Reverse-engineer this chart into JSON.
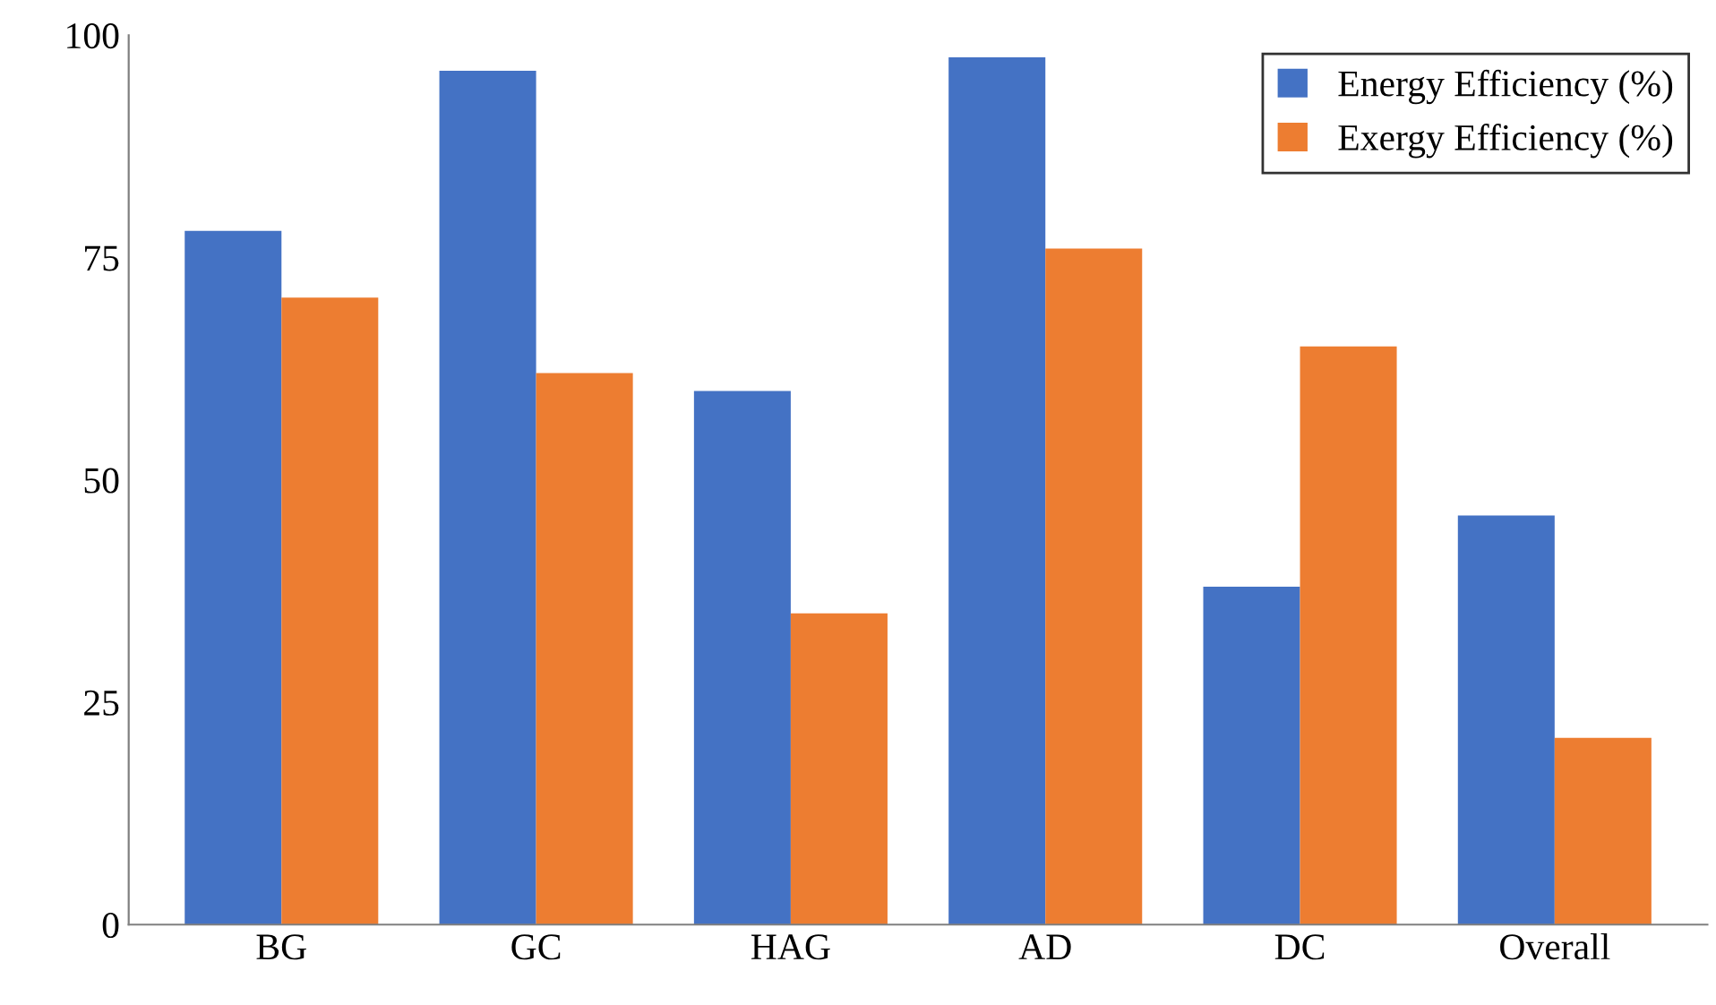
{
  "chart_data": {
    "type": "bar",
    "categories": [
      "BG",
      "GC",
      "HAG",
      "AD",
      "DC",
      "Overall"
    ],
    "series": [
      {
        "name": "Energy Efficiency (%)",
        "color": "#4472c4",
        "values": [
          78,
          96,
          60,
          97.5,
          38,
          46
        ]
      },
      {
        "name": "Exergy Efficiency (%)",
        "color": "#ed7d31",
        "values": [
          70.5,
          62,
          35,
          76,
          65,
          21
        ]
      }
    ],
    "ylim": [
      0,
      100
    ],
    "yticks": [
      0,
      25,
      50,
      75,
      100
    ],
    "grid": false,
    "legend": "top right"
  }
}
